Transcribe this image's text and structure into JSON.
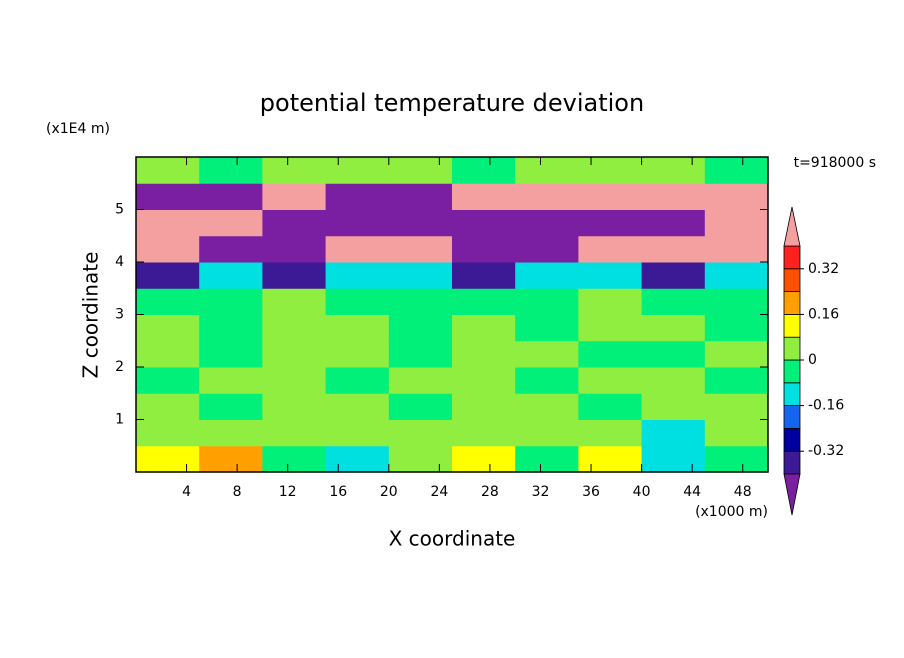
{
  "chart_data": {
    "type": "contour",
    "title": "potential temperature deviation",
    "x_label": "X coordinate",
    "y_label": "Z coordinate",
    "x_unit": "(x1000 m)",
    "y_unit": "(x1E4 m)",
    "annotation": "t=918000 s",
    "xlim": [
      0,
      50
    ],
    "xticks": [
      4,
      8,
      12,
      16,
      20,
      24,
      28,
      32,
      36,
      40,
      44,
      48
    ],
    "ylim": [
      0,
      6
    ],
    "yticks": [
      1,
      2,
      3,
      4,
      5
    ],
    "x": [
      2.5,
      7.5,
      12.5,
      17.5,
      22.5,
      27.5,
      32.5,
      37.5,
      42.5,
      47.5
    ],
    "z": [
      0.25,
      0.75,
      1.25,
      1.75,
      2.25,
      2.75,
      3.25,
      3.75,
      4.25,
      4.75,
      5.25,
      5.75
    ],
    "values": [
      [
        0.12,
        0.2,
        -0.04,
        -0.12,
        0.04,
        0.12,
        -0.04,
        0.12,
        -0.12,
        -0.04
      ],
      [
        0.04,
        0.04,
        0.04,
        0.04,
        0.04,
        0.04,
        0.04,
        0.04,
        -0.12,
        0.04
      ],
      [
        0.04,
        -0.04,
        0.04,
        0.04,
        -0.04,
        0.04,
        0.04,
        -0.04,
        0.04,
        0.04
      ],
      [
        -0.04,
        0.04,
        0.04,
        -0.04,
        0.04,
        0.04,
        -0.04,
        0.04,
        0.04,
        -0.04
      ],
      [
        0.04,
        -0.04,
        0.04,
        0.04,
        -0.04,
        0.04,
        0.04,
        -0.04,
        -0.04,
        0.04
      ],
      [
        0.04,
        -0.04,
        0.04,
        0.04,
        -0.04,
        0.04,
        -0.04,
        0.04,
        0.04,
        -0.04
      ],
      [
        -0.04,
        -0.04,
        0.04,
        -0.04,
        -0.04,
        -0.04,
        -0.04,
        0.04,
        -0.04,
        -0.04
      ],
      [
        -0.36,
        -0.12,
        -0.36,
        -0.12,
        -0.12,
        -0.36,
        -0.12,
        -0.12,
        -0.36,
        -0.12
      ],
      [
        0.5,
        -0.5,
        -0.5,
        0.5,
        0.5,
        -0.5,
        -0.5,
        0.5,
        0.5,
        0.5
      ],
      [
        0.5,
        0.5,
        -0.5,
        -0.5,
        -0.5,
        -0.5,
        -0.5,
        -0.5,
        -0.5,
        0.5
      ],
      [
        -0.5,
        -0.5,
        0.5,
        -0.5,
        -0.5,
        0.5,
        0.5,
        0.5,
        0.5,
        0.5
      ],
      [
        0.04,
        -0.04,
        0.04,
        0.04,
        0.04,
        -0.04,
        0.04,
        0.04,
        0.04,
        -0.04
      ]
    ],
    "levels": [
      -0.4,
      -0.32,
      -0.24,
      -0.16,
      -0.08,
      0,
      0.08,
      0.16,
      0.24,
      0.32,
      0.4
    ],
    "colors": [
      "#7a1fa2",
      "#3c1a96",
      "#0000a0",
      "#1464f0",
      "#00e0e0",
      "#00f07a",
      "#90ee40",
      "#ffff00",
      "#ffa000",
      "#ff5000",
      "#ff2020",
      "#f5a0a0"
    ],
    "colorbar_ticks": [
      -0.32,
      -0.16,
      0,
      0.16,
      0.32
    ]
  }
}
